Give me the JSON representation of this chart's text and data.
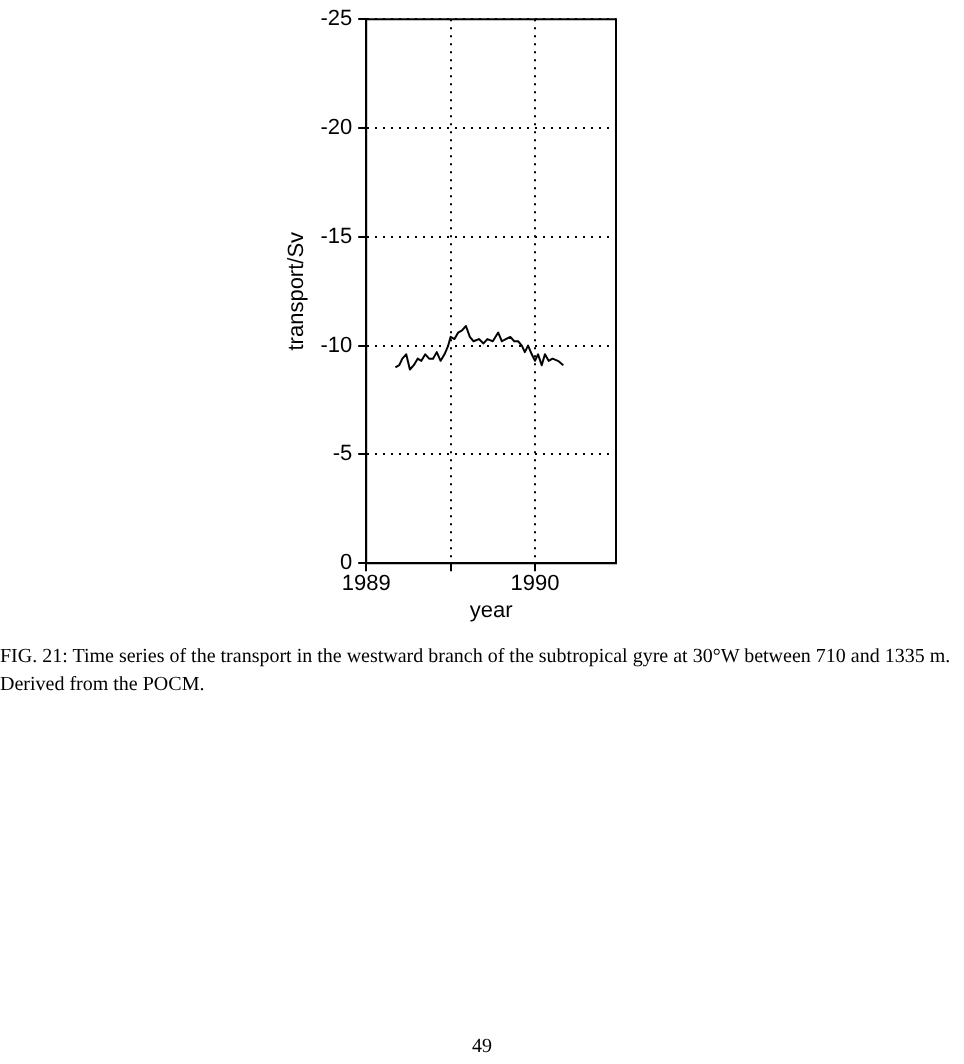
{
  "chart_data": {
    "type": "line",
    "xlabel": "year",
    "ylabel": "transport/Sv",
    "annotations": [
      "FIG. 21: Time series of the transport in the westward branch of the subtropical gyre at 30°W between 710 and 1335 m. Derived from the POCM.",
      "49"
    ],
    "x": [
      1989.173,
      1989.196,
      1989.214,
      1989.237,
      1989.259,
      1989.282,
      1989.305,
      1989.327,
      1989.35,
      1989.373,
      1989.396,
      1989.418,
      1989.441,
      1989.464,
      1989.486,
      1989.5,
      1989.523,
      1989.545,
      1989.568,
      1989.591,
      1989.614,
      1989.636,
      1989.668,
      1989.695,
      1989.718,
      1989.75,
      1989.782,
      1989.804,
      1989.827,
      1989.854,
      1989.877,
      1989.9,
      1989.922,
      1989.94,
      1989.959,
      1989.981,
      1990.0,
      1990.018,
      1990.04,
      1990.059,
      1990.081,
      1990.104,
      1990.136,
      1990.168
    ],
    "series": [
      {
        "color": "#000000",
        "values": [
          -9.0,
          -9.1,
          -9.4,
          -9.6,
          -8.9,
          -9.1,
          -9.4,
          -9.3,
          -9.6,
          -9.4,
          -9.4,
          -9.7,
          -9.3,
          -9.6,
          -10.0,
          -10.4,
          -10.3,
          -10.6,
          -10.7,
          -10.9,
          -10.4,
          -10.2,
          -10.3,
          -10.1,
          -10.3,
          -10.2,
          -10.6,
          -10.2,
          -10.3,
          -10.4,
          -10.2,
          -10.2,
          -10.0,
          -9.7,
          -10.0,
          -9.6,
          -9.3,
          -9.6,
          -9.1,
          -9.6,
          -9.3,
          -9.4,
          -9.3,
          -9.1
        ]
      }
    ],
    "xlim": [
      1989,
      1990.48
    ],
    "xticks": [
      1989,
      {
        "value": 1989.5,
        "label": null
      },
      1990
    ],
    "ylim": [
      0,
      -25
    ],
    "yticks": [
      0,
      -5,
      -10,
      -15,
      -20,
      -25
    ],
    "grid": true,
    "legend": false,
    "marker": "none",
    "line_style": "solid"
  }
}
